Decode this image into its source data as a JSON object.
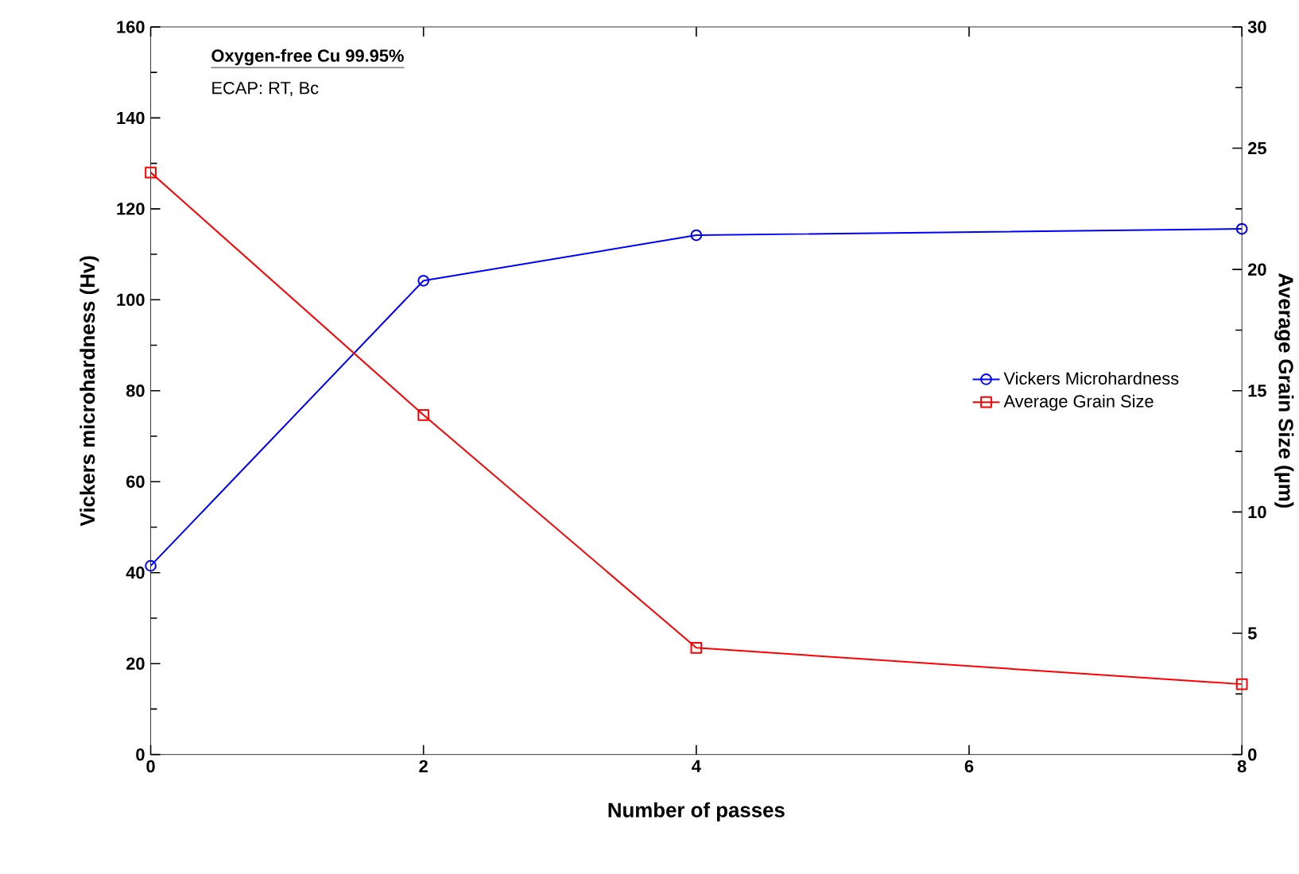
{
  "chart_data": {
    "type": "line",
    "xlabel": "Number of passes",
    "ylabel": "Vickers microhardness (Hv)",
    "y2label": "Average Grain Size (µm)",
    "annotations": [
      "Oxygen-free Cu 99.95%",
      "ECAP: RT, Bc"
    ],
    "x": [
      0,
      2,
      4,
      8
    ],
    "xlim": [
      0,
      8
    ],
    "xticks": [
      0,
      2,
      4,
      6,
      8
    ],
    "ylim": [
      0,
      160
    ],
    "yticks": [
      0,
      20,
      40,
      60,
      80,
      100,
      120,
      140,
      160
    ],
    "y2lim": [
      0,
      30
    ],
    "y2ticks": [
      0,
      5,
      10,
      15,
      20,
      25,
      30
    ],
    "grid": false,
    "legend": "right",
    "line_style": "solid",
    "series": [
      {
        "name": "Vickers Microhardness",
        "color": "#0000ff",
        "marker": "circle",
        "values": [
          41.5,
          104.2,
          114.2,
          115.6
        ]
      },
      {
        "name": "Average Grain Size",
        "color": "#ff0000",
        "marker": "square",
        "axis": "y2",
        "values": [
          24.0,
          14.0,
          4.4,
          2.9
        ]
      }
    ]
  }
}
